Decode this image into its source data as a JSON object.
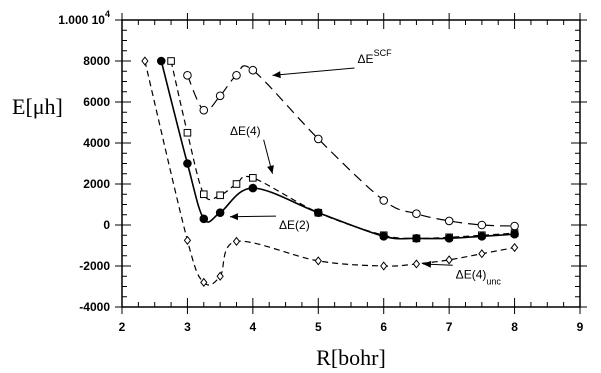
{
  "chart_data": {
    "type": "line",
    "title": "",
    "xlabel": "R[bohr]",
    "ylabel": "E[μh]",
    "xlim": [
      2,
      9
    ],
    "ylim": [
      -4000,
      10000
    ],
    "x_ticks": [
      2,
      3,
      4,
      5,
      6,
      7,
      8,
      9
    ],
    "y_ticks": [
      {
        "value": -4000,
        "label": "-4000"
      },
      {
        "value": -2000,
        "label": "-2000"
      },
      {
        "value": 0,
        "label": "0"
      },
      {
        "value": 2000,
        "label": "2000"
      },
      {
        "value": 4000,
        "label": "4000"
      },
      {
        "value": 6000,
        "label": "6000"
      },
      {
        "value": 8000,
        "label": "8000"
      },
      {
        "value": 10000,
        "label": "1.000 10",
        "superscript": "4"
      }
    ],
    "grid": false,
    "series": [
      {
        "name": "ΔE(SCF)",
        "marker": "circle-open",
        "line": "long-dash",
        "x": [
          3.0,
          3.25,
          3.5,
          3.75,
          4.0,
          5.0,
          6.0,
          6.5,
          7.0,
          7.5,
          8.0
        ],
        "y": [
          7300,
          5600,
          6300,
          7300,
          7550,
          4200,
          1200,
          550,
          200,
          0,
          -50
        ]
      },
      {
        "name": "ΔE(4)",
        "marker": "square-open",
        "line": "dash",
        "x": [
          2.75,
          3.0,
          3.25,
          3.5,
          3.75,
          4.0,
          5.0,
          6.0,
          6.5,
          7.0,
          7.5,
          8.0
        ],
        "y": [
          8000,
          4500,
          1500,
          1450,
          2000,
          2300,
          600,
          -500,
          -650,
          -600,
          -500,
          -400
        ]
      },
      {
        "name": "ΔE(2)",
        "marker": "circle-filled",
        "line": "solid",
        "x": [
          2.6,
          3.0,
          3.25,
          3.5,
          4.0,
          5.0,
          6.0,
          6.5,
          7.0,
          7.5,
          8.0
        ],
        "y": [
          8000,
          3000,
          300,
          600,
          1800,
          600,
          -550,
          -650,
          -650,
          -550,
          -450
        ]
      },
      {
        "name": "ΔE(4)unc",
        "marker": "diamond-open",
        "line": "dash",
        "x": [
          2.35,
          3.0,
          3.25,
          3.5,
          3.75,
          5.0,
          6.0,
          6.5,
          7.0,
          7.5,
          8.0
        ],
        "y": [
          8000,
          -750,
          -2800,
          -2500,
          -800,
          -1750,
          -2000,
          -1900,
          -1700,
          -1400,
          -1100
        ]
      }
    ],
    "annotations": [
      {
        "text": "ΔE",
        "sup": "SCF",
        "x": 5.6,
        "y": 7900,
        "target_x": 4.3,
        "target_y": 7300
      },
      {
        "text": "ΔE(4)",
        "x": 3.65,
        "y": 4400,
        "target_x": 4.3,
        "target_y": 2500
      },
      {
        "text": "ΔE(2)",
        "x": 4.4,
        "y": -200,
        "target_x": 3.65,
        "target_y": 400
      },
      {
        "text": "ΔE(4)",
        "sub": "unc",
        "x": 7.1,
        "y": -2600,
        "target_x": 6.6,
        "target_y": -1900
      }
    ]
  }
}
